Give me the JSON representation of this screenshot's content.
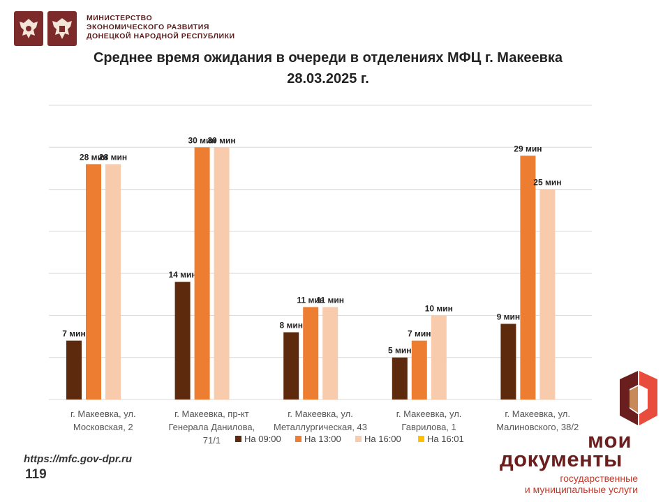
{
  "header": {
    "ministry_line1": "МИНИСТЕРСТВО",
    "ministry_line2": "ЭКОНОМИЧЕСКОГО РАЗВИТИЯ",
    "ministry_line3": "ДОНЕЦКОЙ НАРОДНОЙ РЕСПУБЛИКИ",
    "emblem_icon_1": "russia-coat-of-arms-icon",
    "emblem_icon_2": "dpr-coat-of-arms-icon"
  },
  "chart_data": {
    "type": "bar",
    "title_line1": "Среднее время ожидания в очереди в отделениях МФЦ г. Макеевка",
    "title_line2": "28.03.2025 г.",
    "categories": [
      [
        "г. Макеевка, ул.",
        "Московская, 2"
      ],
      [
        "г. Макеевка, пр-кт",
        "Генерала Данилова,",
        "71/1"
      ],
      [
        "г. Макеевка, ул.",
        "Металлургическая, 43"
      ],
      [
        "г. Макеевка, ул.",
        "Гаврилова, 1"
      ],
      [
        "г. Макеевка, ул.",
        "Малиновского, 38/2"
      ]
    ],
    "series": [
      {
        "name": "На 09:00",
        "color": "#5e2a0e",
        "values": [
          7,
          14,
          8,
          5,
          9
        ],
        "labels": [
          "7 мин",
          "14 мин",
          "8 мин",
          "5 мин",
          "9 мин"
        ]
      },
      {
        "name": "На 13:00",
        "color": "#ed7d31",
        "values": [
          28,
          30,
          11,
          7,
          29
        ],
        "labels": [
          "28 мин",
          "30 мин",
          "11 мин",
          "7 мин",
          "29 мин"
        ]
      },
      {
        "name": "На 16:00",
        "color": "#f8cbad",
        "values": [
          28,
          30,
          11,
          10,
          25
        ],
        "labels": [
          "28 мин",
          "30 мин",
          "11 мин",
          "10 мин",
          "25 мин"
        ]
      },
      {
        "name": "На 16:01",
        "color": "#ffc000",
        "values": [
          0,
          0,
          0,
          0,
          0
        ],
        "labels": [
          "",
          "",
          "",
          "",
          ""
        ]
      }
    ],
    "ylim": [
      0,
      35
    ],
    "grid": true,
    "legend_position": "bottom"
  },
  "footer": {
    "url": "https://mfc.gov-dpr.ru",
    "page_number": "119"
  },
  "brand": {
    "logo_icon": "moi-dokumenty-logo-icon",
    "line1": "мои",
    "line2": "документы",
    "sub1": "государственные",
    "sub2": "и муниципальные услуги"
  }
}
